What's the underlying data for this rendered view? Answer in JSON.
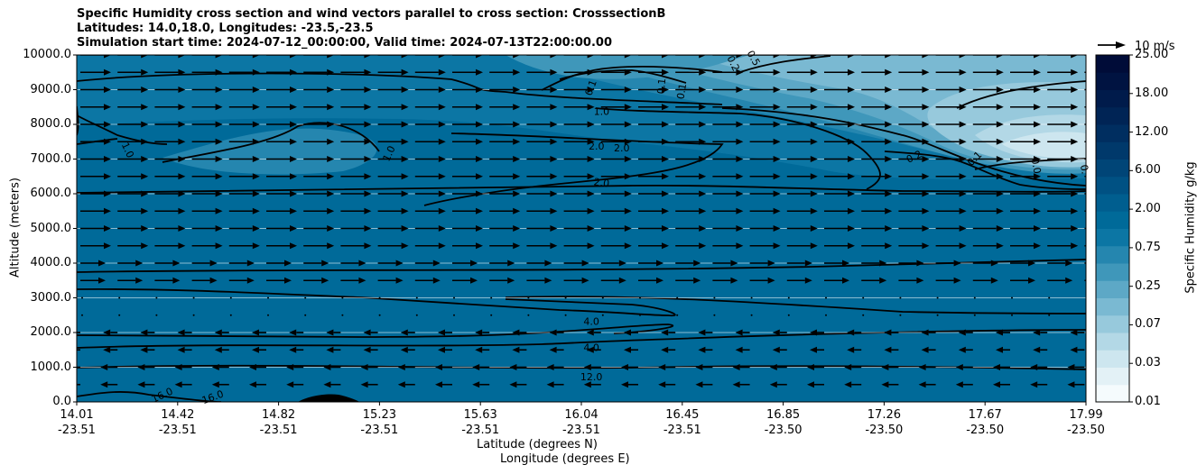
{
  "chart_data": {
    "type": "contour-cross-section",
    "title_lines": [
      "Specific Humidity cross section and wind vectors parallel to cross section: CrosssectionB",
      "Latitudes: 14.0,18.0, Longitudes: -23.5,-23.5",
      "Simulation start time: 2024-07-12_00:00:00, Valid time: 2024-07-13T22:00:00.00"
    ],
    "xlabel_lat": "Latitude (degrees N)",
    "xlabel_lon": "Longitude (degrees E)",
    "ylabel": "Altitude (meters)",
    "x_ticks": [
      {
        "lat": "14.01",
        "lon": "-23.51"
      },
      {
        "lat": "14.42",
        "lon": "-23.51"
      },
      {
        "lat": "14.82",
        "lon": "-23.51"
      },
      {
        "lat": "15.23",
        "lon": "-23.51"
      },
      {
        "lat": "15.63",
        "lon": "-23.51"
      },
      {
        "lat": "16.04",
        "lon": "-23.51"
      },
      {
        "lat": "16.45",
        "lon": "-23.51"
      },
      {
        "lat": "16.85",
        "lon": "-23.50"
      },
      {
        "lat": "17.26",
        "lon": "-23.50"
      },
      {
        "lat": "17.67",
        "lon": "-23.50"
      },
      {
        "lat": "17.99",
        "lon": "-23.50"
      }
    ],
    "x_range": [
      0,
      10
    ],
    "y_ticks": [
      "0.0",
      "1000.0",
      "2000.0",
      "3000.0",
      "4000.0",
      "5000.0",
      "6000.0",
      "7000.0",
      "8000.0",
      "9000.0",
      "10000.0"
    ],
    "y_range": [
      0,
      10000
    ],
    "colorbar_label": "Specific Humidity g/kg",
    "colorbar_ticks": [
      "0.01",
      "0.03",
      "0.07",
      "0.25",
      "0.75",
      "2.00",
      "6.00",
      "12.00",
      "18.00",
      "25.00"
    ],
    "colorbar_colors": [
      "#f5fbfd",
      "#e3f1f6",
      "#cde6ef",
      "#b3d8e6",
      "#97c9dc",
      "#7ab9d2",
      "#5da8c6",
      "#3f97ba",
      "#2586af",
      "#0c76a4",
      "#006a99",
      "#005e8f",
      "#005183",
      "#004577",
      "#00396b",
      "#002e60",
      "#002455",
      "#001b4b",
      "#001341",
      "#000c38"
    ],
    "wind_key_label": "10 m/s",
    "contour_labels": [
      {
        "text": "1.0",
        "x": 0.5,
        "y": 7250,
        "rot": 65
      },
      {
        "text": "1.0",
        "x": 3.1,
        "y": 7150,
        "rot": -65
      },
      {
        "text": "1.0",
        "x": 5.2,
        "y": 8350,
        "rot": 0
      },
      {
        "text": "2.0",
        "x": 5.15,
        "y": 7350,
        "rot": 0
      },
      {
        "text": "2.0",
        "x": 5.4,
        "y": 7300,
        "rot": 0
      },
      {
        "text": "2.0",
        "x": 5.2,
        "y": 6300,
        "rot": 8
      },
      {
        "text": "0.1",
        "x": 5.1,
        "y": 9050,
        "rot": -70
      },
      {
        "text": "0.1",
        "x": 5.8,
        "y": 9100,
        "rot": -85
      },
      {
        "text": "0.1",
        "x": 6.0,
        "y": 8950,
        "rot": -80
      },
      {
        "text": "0.2",
        "x": 6.5,
        "y": 9750,
        "rot": 65
      },
      {
        "text": "0.5",
        "x": 6.7,
        "y": 9900,
        "rot": 60
      },
      {
        "text": "0.2",
        "x": 8.3,
        "y": 7050,
        "rot": -25
      },
      {
        "text": "0.1",
        "x": 8.9,
        "y": 7000,
        "rot": -45
      },
      {
        "text": "0.0",
        "x": 9.5,
        "y": 6800,
        "rot": 80
      },
      {
        "text": "0.",
        "x": 9.98,
        "y": 6700,
        "rot": 80
      },
      {
        "text": "4.0",
        "x": 5.1,
        "y": 2300,
        "rot": 0
      },
      {
        "text": "4.0",
        "x": 5.1,
        "y": 1550,
        "rot": 0
      },
      {
        "text": "12.0",
        "x": 5.1,
        "y": 700,
        "rot": 0
      },
      {
        "text": "16.0",
        "x": 0.85,
        "y": 180,
        "rot": -25
      },
      {
        "text": "16.0",
        "x": 1.35,
        "y": 120,
        "rot": -20
      }
    ]
  }
}
